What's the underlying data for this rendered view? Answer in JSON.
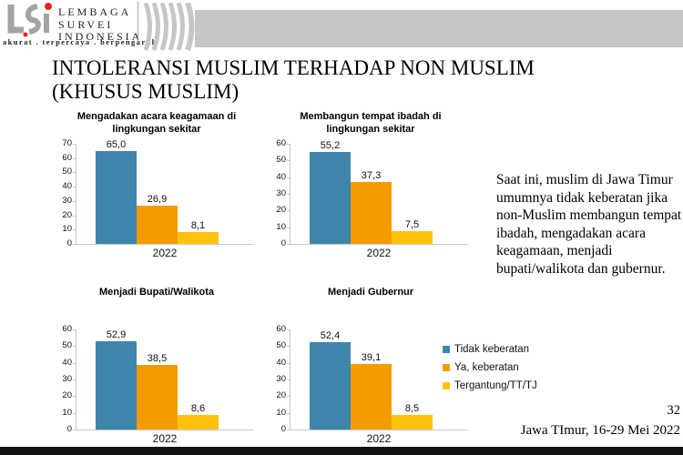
{
  "header": {
    "logo": {
      "name_lines": [
        "LEMBAGA",
        "SURVEI",
        "INDONESIA"
      ],
      "tagline": "akurat . terpercaya . berpengaruh"
    },
    "colors": {
      "gray": "#a3a3a3",
      "red": "#e1251b",
      "band": "#c6c6c6"
    }
  },
  "title": {
    "line1": "INTOLERANSI MUSLIM TERHADAP NON MUSLIM",
    "line2": "(KHUSUS MUSLIM)"
  },
  "legend": {
    "items": [
      {
        "label": "Tidak keberatan",
        "color": "#3E85AC"
      },
      {
        "label": "Ya, keberatan",
        "color": "#F59B00"
      },
      {
        "label": "Tergantung/TT/TJ",
        "color": "#FFC30E"
      }
    ]
  },
  "note": "Saat ini, muslim di Jawa Timur umumnya tidak keberatan jika non-Muslim membangun tempat ibadah, mengadakan acara keagamaan, menjadi bupati/walikota dan gubernur.",
  "page_number": "32",
  "footer": "Jawa TImur, 16-29 Mei 2022",
  "chart_data": [
    {
      "type": "bar",
      "title": "Mengadakan acara keagamaan di lingkungan sekitar",
      "categories": [
        "2022"
      ],
      "series": [
        {
          "name": "Tidak keberatan",
          "values": [
            65.0
          ]
        },
        {
          "name": "Ya, keberatan",
          "values": [
            26.9
          ]
        },
        {
          "name": "Tergantung/TT/TJ",
          "values": [
            8.1
          ]
        }
      ],
      "ylim": [
        0,
        70
      ],
      "ystep": 10,
      "grid": false,
      "legend_position": "none"
    },
    {
      "type": "bar",
      "title": "Membangun tempat ibadah di lingkungan sekitar",
      "categories": [
        "2022"
      ],
      "series": [
        {
          "name": "Tidak keberatan",
          "values": [
            55.2
          ]
        },
        {
          "name": "Ya, keberatan",
          "values": [
            37.3
          ]
        },
        {
          "name": "Tergantung/TT/TJ",
          "values": [
            7.5
          ]
        }
      ],
      "ylim": [
        0,
        60
      ],
      "ystep": 10,
      "grid": false,
      "legend_position": "none"
    },
    {
      "type": "bar",
      "title": "Menjadi Bupati/Walikota",
      "categories": [
        "2022"
      ],
      "series": [
        {
          "name": "Tidak keberatan",
          "values": [
            52.9
          ]
        },
        {
          "name": "Ya, keberatan",
          "values": [
            38.5
          ]
        },
        {
          "name": "Tergantung/TT/TJ",
          "values": [
            8.6
          ]
        }
      ],
      "ylim": [
        0,
        60
      ],
      "ystep": 10,
      "grid": false,
      "legend_position": "none"
    },
    {
      "type": "bar",
      "title": "Menjadi Gubernur",
      "categories": [
        "2022"
      ],
      "series": [
        {
          "name": "Tidak keberatan",
          "values": [
            52.4
          ]
        },
        {
          "name": "Ya, keberatan",
          "values": [
            39.1
          ]
        },
        {
          "name": "Tergantung/TT/TJ",
          "values": [
            8.5
          ]
        }
      ],
      "ylim": [
        0,
        60
      ],
      "ystep": 10,
      "grid": false,
      "legend_position": "right-of-chart-4"
    }
  ]
}
